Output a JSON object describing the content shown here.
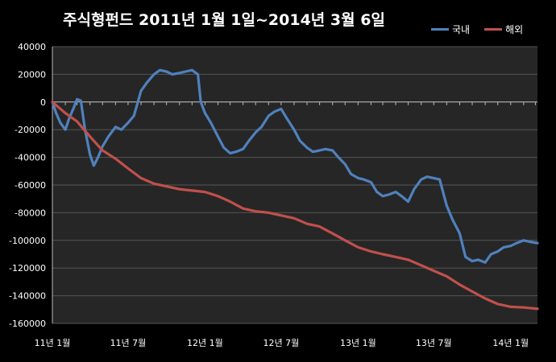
{
  "chart_data": {
    "type": "line",
    "title": "주식형펀드   2011년 1월 1일~2014년 3월 6일",
    "xlabel": "",
    "ylabel": "",
    "ylim": [
      -160000,
      40000
    ],
    "y_ticks": [
      40000,
      20000,
      0,
      -20000,
      -40000,
      -60000,
      -80000,
      -100000,
      -120000,
      -140000,
      -160000
    ],
    "x_ticks": [
      "11년 1월",
      "11년 7월",
      "12년 1월",
      "12년 7월",
      "13년 1월",
      "13년 7월",
      "14년 1월"
    ],
    "x_range": [
      "2011-01-01",
      "2014-03-06"
    ],
    "grid": {
      "horizontal": true,
      "vertical": false
    },
    "legend_position": "top-right",
    "series": [
      {
        "name": "국내",
        "color": "#4f81bd",
        "points": [
          [
            "2011-01-01",
            0
          ],
          [
            "2011-01-10",
            -8000
          ],
          [
            "2011-01-20",
            -15000
          ],
          [
            "2011-02-01",
            -20000
          ],
          [
            "2011-02-10",
            -12000
          ],
          [
            "2011-02-20",
            -5000
          ],
          [
            "2011-03-01",
            2000
          ],
          [
            "2011-03-10",
            1000
          ],
          [
            "2011-03-20",
            -20000
          ],
          [
            "2011-04-01",
            -38000
          ],
          [
            "2011-04-10",
            -46000
          ],
          [
            "2011-04-20",
            -40000
          ],
          [
            "2011-05-01",
            -32000
          ],
          [
            "2011-05-15",
            -25000
          ],
          [
            "2011-06-01",
            -18000
          ],
          [
            "2011-06-15",
            -20000
          ],
          [
            "2011-07-01",
            -15000
          ],
          [
            "2011-07-15",
            -10000
          ],
          [
            "2011-08-01",
            8000
          ],
          [
            "2011-08-15",
            14000
          ],
          [
            "2011-09-01",
            20000
          ],
          [
            "2011-09-15",
            23000
          ],
          [
            "2011-10-01",
            22000
          ],
          [
            "2011-10-15",
            20000
          ],
          [
            "2011-11-01",
            21000
          ],
          [
            "2011-11-15",
            22000
          ],
          [
            "2011-12-01",
            23000
          ],
          [
            "2011-12-15",
            20000
          ],
          [
            "2011-12-22",
            0
          ],
          [
            "2012-01-01",
            -8000
          ],
          [
            "2012-01-15",
            -15000
          ],
          [
            "2012-02-01",
            -25000
          ],
          [
            "2012-02-15",
            -33000
          ],
          [
            "2012-03-01",
            -37000
          ],
          [
            "2012-03-15",
            -36000
          ],
          [
            "2012-04-01",
            -34000
          ],
          [
            "2012-04-15",
            -28000
          ],
          [
            "2012-05-01",
            -22000
          ],
          [
            "2012-05-15",
            -18000
          ],
          [
            "2012-06-01",
            -10000
          ],
          [
            "2012-06-15",
            -7000
          ],
          [
            "2012-07-01",
            -5000
          ],
          [
            "2012-07-15",
            -12000
          ],
          [
            "2012-08-01",
            -20000
          ],
          [
            "2012-08-15",
            -28000
          ],
          [
            "2012-09-01",
            -33000
          ],
          [
            "2012-09-15",
            -36000
          ],
          [
            "2012-10-01",
            -35000
          ],
          [
            "2012-10-15",
            -34000
          ],
          [
            "2012-11-01",
            -35000
          ],
          [
            "2012-11-15",
            -40000
          ],
          [
            "2012-12-01",
            -45000
          ],
          [
            "2012-12-15",
            -52000
          ],
          [
            "2013-01-01",
            -55000
          ],
          [
            "2013-01-15",
            -56000
          ],
          [
            "2013-02-01",
            -58000
          ],
          [
            "2013-02-15",
            -65000
          ],
          [
            "2013-03-01",
            -68000
          ],
          [
            "2013-03-15",
            -67000
          ],
          [
            "2013-04-01",
            -65000
          ],
          [
            "2013-04-15",
            -68000
          ],
          [
            "2013-05-01",
            -72000
          ],
          [
            "2013-05-15",
            -63000
          ],
          [
            "2013-06-01",
            -56000
          ],
          [
            "2013-06-15",
            -54000
          ],
          [
            "2013-07-01",
            -55000
          ],
          [
            "2013-07-15",
            -56000
          ],
          [
            "2013-08-01",
            -75000
          ],
          [
            "2013-08-15",
            -85000
          ],
          [
            "2013-09-01",
            -95000
          ],
          [
            "2013-09-15",
            -112000
          ],
          [
            "2013-10-01",
            -115000
          ],
          [
            "2013-10-15",
            -114000
          ],
          [
            "2013-11-01",
            -116000
          ],
          [
            "2013-11-15",
            -110000
          ],
          [
            "2013-12-01",
            -108000
          ],
          [
            "2013-12-15",
            -105000
          ],
          [
            "2014-01-01",
            -104000
          ],
          [
            "2014-01-15",
            -102000
          ],
          [
            "2014-02-01",
            -100000
          ],
          [
            "2014-02-15",
            -101000
          ],
          [
            "2014-03-06",
            -102000
          ]
        ]
      },
      {
        "name": "해외",
        "color": "#c0504d",
        "points": [
          [
            "2011-01-01",
            0
          ],
          [
            "2011-02-01",
            -8000
          ],
          [
            "2011-03-01",
            -14000
          ],
          [
            "2011-04-01",
            -25000
          ],
          [
            "2011-05-01",
            -35000
          ],
          [
            "2011-06-01",
            -41000
          ],
          [
            "2011-07-01",
            -48000
          ],
          [
            "2011-08-01",
            -55000
          ],
          [
            "2011-09-01",
            -59000
          ],
          [
            "2011-10-01",
            -61000
          ],
          [
            "2011-11-01",
            -63000
          ],
          [
            "2011-12-01",
            -64000
          ],
          [
            "2012-01-01",
            -65000
          ],
          [
            "2012-02-01",
            -68000
          ],
          [
            "2012-03-01",
            -72000
          ],
          [
            "2012-04-01",
            -77000
          ],
          [
            "2012-05-01",
            -79000
          ],
          [
            "2012-06-01",
            -80000
          ],
          [
            "2012-07-01",
            -82000
          ],
          [
            "2012-08-01",
            -84000
          ],
          [
            "2012-09-01",
            -88000
          ],
          [
            "2012-10-01",
            -90000
          ],
          [
            "2012-11-01",
            -95000
          ],
          [
            "2012-12-01",
            -100000
          ],
          [
            "2013-01-01",
            -105000
          ],
          [
            "2013-02-01",
            -108000
          ],
          [
            "2013-03-01",
            -110000
          ],
          [
            "2013-04-01",
            -112000
          ],
          [
            "2013-05-01",
            -114000
          ],
          [
            "2013-06-01",
            -118000
          ],
          [
            "2013-07-01",
            -122000
          ],
          [
            "2013-08-01",
            -126000
          ],
          [
            "2013-09-01",
            -132000
          ],
          [
            "2013-10-01",
            -137000
          ],
          [
            "2013-11-01",
            -142000
          ],
          [
            "2013-12-01",
            -146000
          ],
          [
            "2014-01-01",
            -148000
          ],
          [
            "2014-02-01",
            -148500
          ],
          [
            "2014-03-06",
            -149500
          ]
        ]
      }
    ]
  }
}
